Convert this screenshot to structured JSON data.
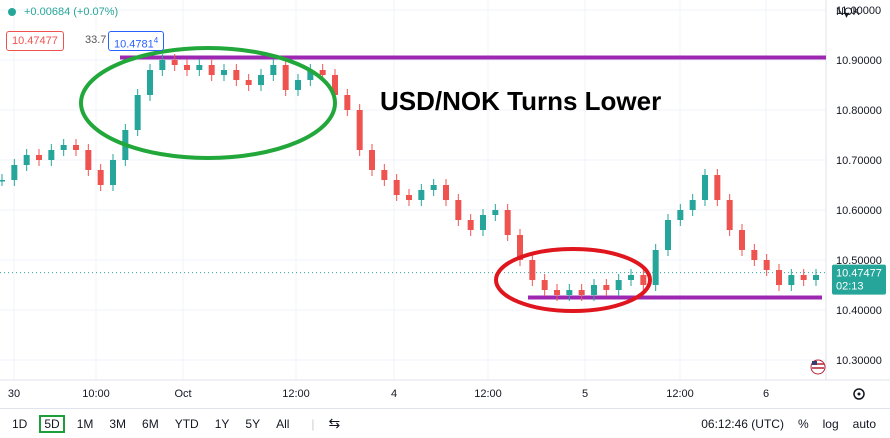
{
  "header": {
    "change": "+0.00684 (+0.07%)",
    "bid": "10.47477",
    "spread": "33.7",
    "ask": "10.4781",
    "ask_super": "4",
    "currency": "NOK"
  },
  "annotation": {
    "title": "USD/NOK Turns Lower"
  },
  "chart_data": {
    "type": "line",
    "title": "USD/NOK Turns Lower",
    "y_ticks": [
      "11.00000",
      "10.90000",
      "10.80000",
      "10.70000",
      "10.60000",
      "10.50000",
      "10.40000",
      "10.30000"
    ],
    "ylim": [
      10.26,
      11.02
    ],
    "x_ticks": [
      "30",
      "10:00",
      "Oct",
      "12:00",
      "4",
      "12:00",
      "5",
      "12:00",
      "6"
    ],
    "current_price": "10.47477",
    "countdown": "02:13",
    "resistance": 10.905,
    "support": 10.425,
    "series": [
      {
        "values": [
          10.66,
          10.69,
          10.71,
          10.7,
          10.72,
          10.73,
          10.72,
          10.68,
          10.65,
          10.7,
          10.76,
          10.83,
          10.88,
          10.9,
          10.89,
          10.88,
          10.89,
          10.87,
          10.88,
          10.86,
          10.85,
          10.87,
          10.89,
          10.84,
          10.86,
          10.88,
          10.87,
          10.83,
          10.8,
          10.72,
          10.68,
          10.66,
          10.63,
          10.62,
          10.64,
          10.65,
          10.62,
          10.58,
          10.56,
          10.59,
          10.6,
          10.55,
          10.5,
          10.46,
          10.44,
          10.43,
          10.44,
          10.43,
          10.45,
          10.44,
          10.46,
          10.47,
          10.45,
          10.52,
          10.58,
          10.6,
          10.62,
          10.67,
          10.62,
          10.56,
          10.52,
          10.5,
          10.48,
          10.45,
          10.47,
          10.46,
          10.47
        ]
      }
    ]
  },
  "toolbar": {
    "timeframes": [
      "1D",
      "5D",
      "1M",
      "3M",
      "6M",
      "YTD",
      "1Y",
      "5Y",
      "All"
    ],
    "active": "5D",
    "time": "06:12:46 (UTC)",
    "percent": "%",
    "log": "log",
    "auto": "auto"
  },
  "colors": {
    "up": "#26a69a",
    "down": "#ef5350",
    "level": "#9c27b0",
    "green_ring": "#22a83a",
    "red_ring": "#e0161e"
  }
}
